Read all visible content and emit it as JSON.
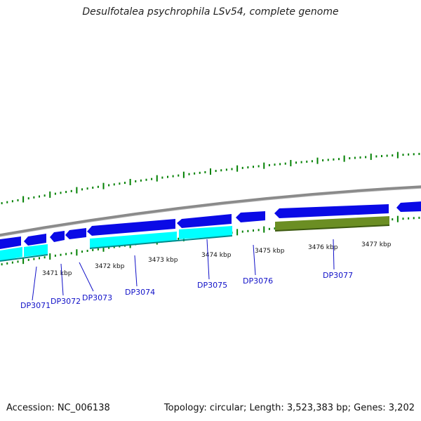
{
  "title": "Desulfotalea psychrophila LSv54, complete genome",
  "footer": {
    "accession": "Accession: NC_006138",
    "summary": "Topology: circular; Length: 3,523,383 bp; Genes: 3,202"
  },
  "colors": {
    "backbone": "#8a8a8a",
    "forward_gene": "#0a0ae6",
    "reverse_gene": "#00ffff",
    "rna_gene": "#6b8e23",
    "tick": "#008000",
    "gene_label": "#1010c8"
  },
  "kbp_labels": [
    "3471 kbp",
    "3472 kbp",
    "3473 kbp",
    "3474 kbp",
    "3475 kbp",
    "3476 kbp",
    "3477 kbp"
  ],
  "gene_labels": [
    "DP3071",
    "DP3072",
    "DP3073",
    "DP3074",
    "DP3075",
    "DP3076",
    "DP3077"
  ]
}
